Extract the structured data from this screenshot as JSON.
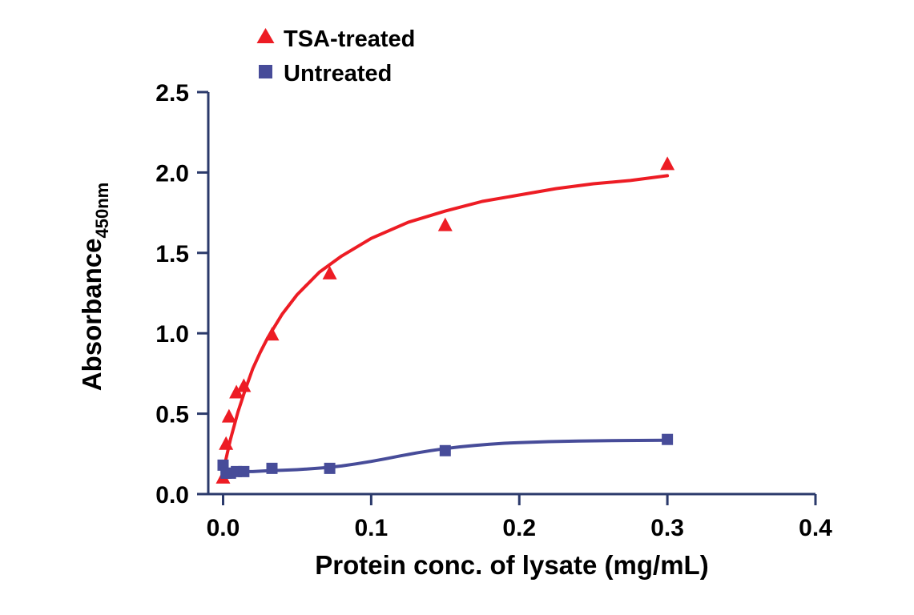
{
  "figure": {
    "background": "#ffffff"
  },
  "chart_data": {
    "type": "scatter",
    "title": "",
    "xlabel": "Protein conc. of lysate (mg/mL)",
    "ylabel": "Absorbance",
    "ylabel_sub": "450nm",
    "xlim": [
      -0.01,
      0.4
    ],
    "ylim": [
      0,
      2.5
    ],
    "xticks": [
      0.0,
      0.1,
      0.2,
      0.3,
      0.4
    ],
    "xtick_labels": [
      "0.0",
      "0.1",
      "0.2",
      "0.3",
      "0.4"
    ],
    "yticks": [
      0.0,
      0.5,
      1.0,
      1.5,
      2.0,
      2.5
    ],
    "ytick_labels": [
      "0.0",
      "0.5",
      "1.0",
      "1.5",
      "2.0",
      "2.5"
    ],
    "grid": false,
    "legend_position": "top-left-above-plot",
    "axis_color": "#2b3a6b",
    "tick_label_color": "#000000",
    "series": [
      {
        "name": "TSA-treated",
        "marker": "triangle",
        "color": "#ed1c24",
        "points": [
          [
            0.0,
            0.1
          ],
          [
            0.002,
            0.31
          ],
          [
            0.004,
            0.48
          ],
          [
            0.009,
            0.63
          ],
          [
            0.014,
            0.67
          ],
          [
            0.033,
            0.99
          ],
          [
            0.072,
            1.37
          ],
          [
            0.15,
            1.67
          ],
          [
            0.3,
            2.05
          ]
        ],
        "curve": [
          [
            0,
            0.14
          ],
          [
            0.005,
            0.34
          ],
          [
            0.01,
            0.51
          ],
          [
            0.015,
            0.65
          ],
          [
            0.02,
            0.78
          ],
          [
            0.025,
            0.88
          ],
          [
            0.03,
            0.97
          ],
          [
            0.04,
            1.12
          ],
          [
            0.05,
            1.24
          ],
          [
            0.065,
            1.38
          ],
          [
            0.08,
            1.48
          ],
          [
            0.1,
            1.59
          ],
          [
            0.125,
            1.69
          ],
          [
            0.15,
            1.76
          ],
          [
            0.175,
            1.82
          ],
          [
            0.2,
            1.86
          ],
          [
            0.225,
            1.9
          ],
          [
            0.25,
            1.93
          ],
          [
            0.275,
            1.95
          ],
          [
            0.3,
            1.98
          ]
        ]
      },
      {
        "name": "Untreated",
        "marker": "square",
        "color": "#474c99",
        "points": [
          [
            0.0,
            0.18
          ],
          [
            0.002,
            0.13
          ],
          [
            0.005,
            0.13
          ],
          [
            0.009,
            0.14
          ],
          [
            0.014,
            0.14
          ],
          [
            0.033,
            0.16
          ],
          [
            0.072,
            0.16
          ],
          [
            0.15,
            0.27
          ],
          [
            0.3,
            0.34
          ]
        ],
        "curve": [
          [
            0,
            0.15
          ],
          [
            0.01,
            0.14
          ],
          [
            0.02,
            0.14
          ],
          [
            0.03,
            0.145
          ],
          [
            0.04,
            0.148
          ],
          [
            0.05,
            0.152
          ],
          [
            0.06,
            0.158
          ],
          [
            0.07,
            0.165
          ],
          [
            0.08,
            0.175
          ],
          [
            0.09,
            0.188
          ],
          [
            0.1,
            0.203
          ],
          [
            0.11,
            0.22
          ],
          [
            0.12,
            0.238
          ],
          [
            0.13,
            0.255
          ],
          [
            0.14,
            0.27
          ],
          [
            0.15,
            0.283
          ],
          [
            0.16,
            0.294
          ],
          [
            0.17,
            0.303
          ],
          [
            0.18,
            0.31
          ],
          [
            0.19,
            0.316
          ],
          [
            0.2,
            0.32
          ],
          [
            0.22,
            0.326
          ],
          [
            0.24,
            0.33
          ],
          [
            0.27,
            0.333
          ],
          [
            0.3,
            0.335
          ]
        ]
      }
    ]
  }
}
